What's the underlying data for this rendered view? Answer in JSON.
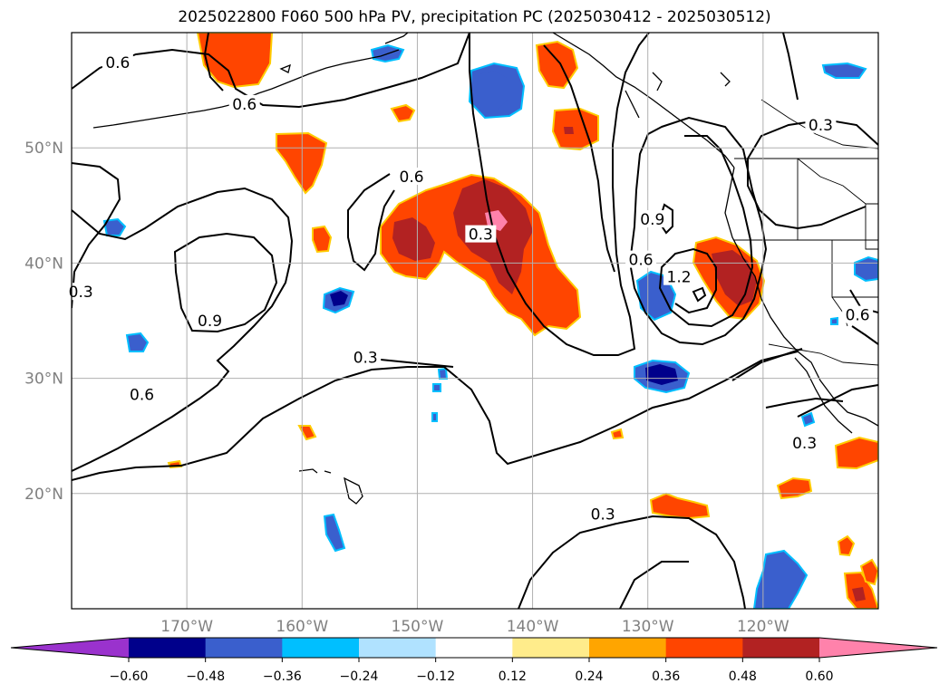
{
  "title": "2025022800 F060 500 hPa PV, precipitation PC (2025030412 - 2025030512)",
  "map": {
    "lon_range": [
      -180,
      -110
    ],
    "lat_range": [
      10,
      60
    ],
    "lat_ticks": [
      {
        "value": 20,
        "label": "20°N"
      },
      {
        "value": 30,
        "label": "30°N"
      },
      {
        "value": 40,
        "label": "40°N"
      },
      {
        "value": 50,
        "label": "50°N"
      }
    ],
    "lon_ticks": [
      {
        "value": -170,
        "label": "170°W"
      },
      {
        "value": -160,
        "label": "160°W"
      },
      {
        "value": -150,
        "label": "150°W"
      },
      {
        "value": -140,
        "label": "140°W"
      },
      {
        "value": -130,
        "label": "130°W"
      },
      {
        "value": -120,
        "label": "120°W"
      }
    ],
    "grid": true,
    "contour_line_color": "#000000",
    "pv_contour_levels": [
      0.3,
      0.6,
      0.9,
      1.2
    ],
    "contour_labels": [
      {
        "text": "0.6",
        "lon": -176,
        "lat": 57.4
      },
      {
        "text": "0.6",
        "lon": -165,
        "lat": 53.8
      },
      {
        "text": "0.3",
        "lon": -115,
        "lat": 52.0
      },
      {
        "text": "0.6",
        "lon": -150.5,
        "lat": 47.5
      },
      {
        "text": "0.3",
        "lon": -144.5,
        "lat": 42.5
      },
      {
        "text": "0.9",
        "lon": -129.6,
        "lat": 43.8
      },
      {
        "text": "0.6",
        "lon": -130.6,
        "lat": 40.3
      },
      {
        "text": "1.2",
        "lon": -127.3,
        "lat": 38.8
      },
      {
        "text": "0.3",
        "lon": -179.2,
        "lat": 37.5
      },
      {
        "text": "0.9",
        "lon": -168,
        "lat": 35.0
      },
      {
        "text": "0.6",
        "lon": -111.8,
        "lat": 35.5
      },
      {
        "text": "0.3",
        "lon": -154.5,
        "lat": 31.8
      },
      {
        "text": "0.6",
        "lon": -173.9,
        "lat": 28.6
      },
      {
        "text": "0.3",
        "lon": -116.4,
        "lat": 24.4
      },
      {
        "text": "0.3",
        "lon": -133.9,
        "lat": 18.2
      }
    ]
  },
  "colorbar": {
    "ticks": [
      "−0.60",
      "−0.48",
      "−0.36",
      "−0.24",
      "−0.12",
      "0.12",
      "0.24",
      "0.36",
      "0.48",
      "0.60"
    ],
    "colors": [
      "#9a32cd",
      "#00008b",
      "#3a5fcd",
      "#00bfff",
      "#b0e2ff",
      "#ffffff",
      "#ffec8b",
      "#ffa500",
      "#ff4500",
      "#b22222",
      "#ff82ab"
    ]
  }
}
